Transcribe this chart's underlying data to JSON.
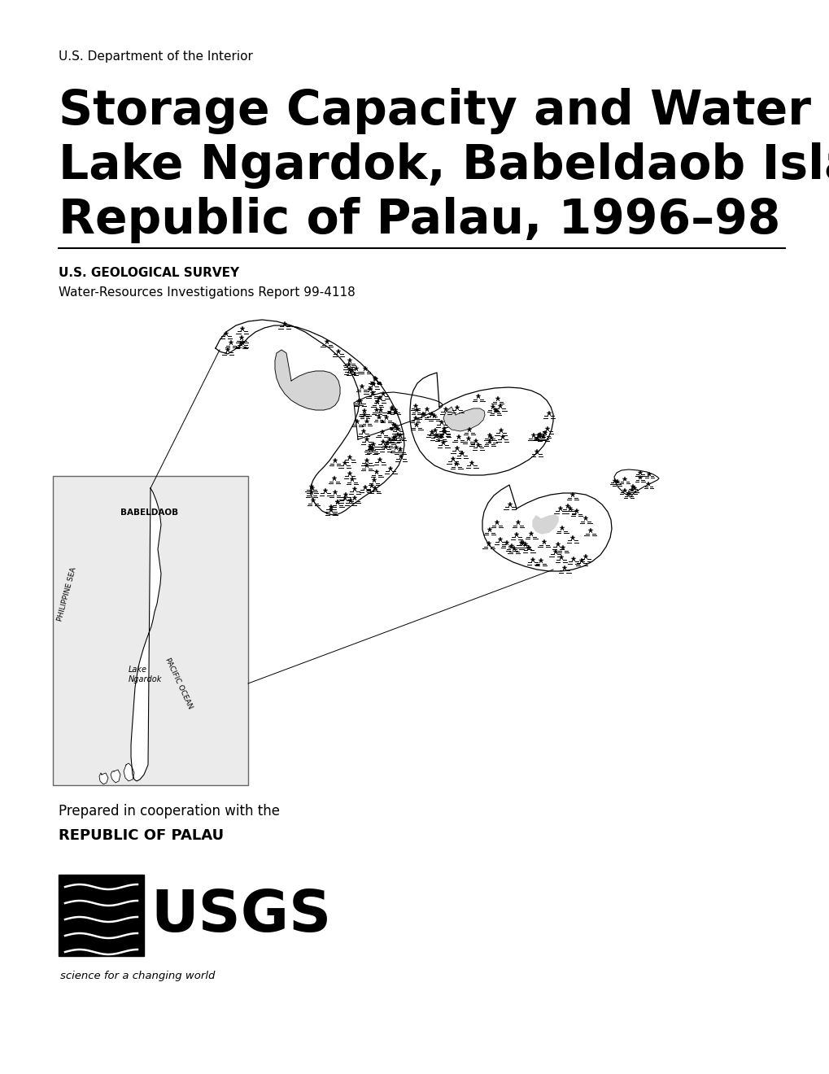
{
  "dept_text": "U.S. Department of the Interior",
  "title_line1": "Storage Capacity and Water Quality of",
  "title_line2": "Lake Ngardok, Babeldaob Island,",
  "title_line3": "Republic of Palau, 1996–98",
  "survey_line1": "U.S. GEOLOGICAL SURVEY",
  "survey_line2": "Water-Resources Investigations Report 99-4118",
  "cooperation_line1": "Prepared in cooperation with the",
  "cooperation_line2": "REPUBLIC OF PALAU",
  "usgs_tagline": "science for a changing world",
  "bg_color": "#ffffff",
  "text_color": "#000000",
  "title_fontsize": 42,
  "dept_fontsize": 11,
  "survey1_fontsize": 11,
  "survey2_fontsize": 11
}
